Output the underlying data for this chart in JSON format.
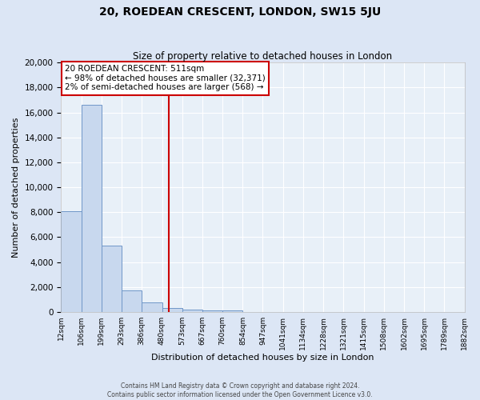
{
  "title": "20, ROEDEAN CRESCENT, LONDON, SW15 5JU",
  "subtitle": "Size of property relative to detached houses in London",
  "xlabel": "Distribution of detached houses by size in London",
  "ylabel": "Number of detached properties",
  "bar_color": "#c8d8ee",
  "bar_edge_color": "#7097c8",
  "vline_x": 511,
  "vline_color": "#cc0000",
  "annotation_title": "20 ROEDEAN CRESCENT: 511sqm",
  "annotation_line1": "← 98% of detached houses are smaller (32,371)",
  "annotation_line2": "2% of semi-detached houses are larger (568) →",
  "ylim": [
    0,
    20000
  ],
  "yticks": [
    0,
    2000,
    4000,
    6000,
    8000,
    10000,
    12000,
    14000,
    16000,
    18000,
    20000
  ],
  "bin_edges": [
    12,
    106,
    199,
    293,
    386,
    480,
    573,
    667,
    760,
    854,
    947,
    1041,
    1134,
    1228,
    1321,
    1415,
    1508,
    1602,
    1695,
    1789,
    1882
  ],
  "counts": [
    8100,
    16600,
    5300,
    1750,
    750,
    300,
    200,
    150,
    100,
    0,
    0,
    0,
    0,
    0,
    0,
    0,
    0,
    0,
    0,
    0
  ],
  "footer1": "Contains HM Land Registry data © Crown copyright and database right 2024.",
  "footer2": "Contains public sector information licensed under the Open Government Licence v3.0.",
  "background_color": "#dce6f5",
  "plot_bg_color": "#e8f0f8",
  "grid_color": "#ffffff",
  "title_fontsize": 10,
  "subtitle_fontsize": 8.5,
  "ylabel_fontsize": 8,
  "xlabel_fontsize": 8,
  "ytick_fontsize": 7.5,
  "xtick_fontsize": 6.5,
  "ann_fontsize": 7.5,
  "footer_fontsize": 5.5
}
